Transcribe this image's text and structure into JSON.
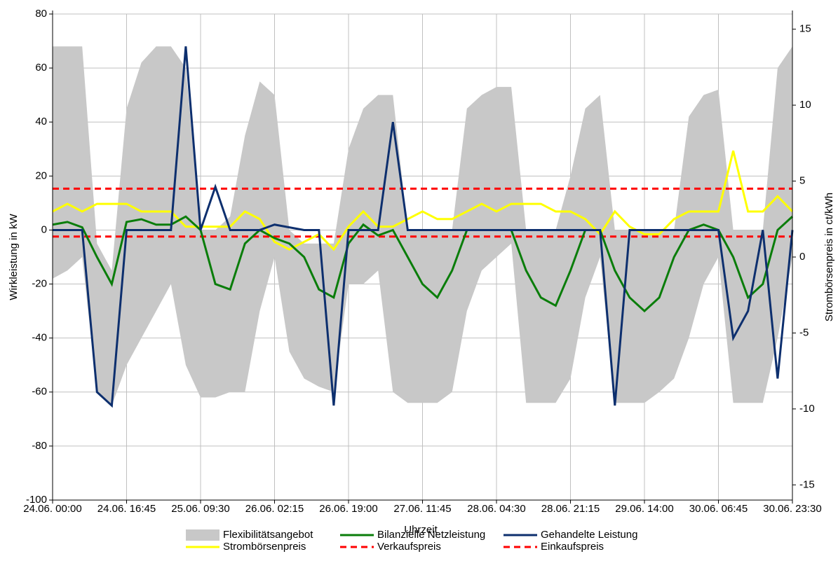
{
  "chart_data": {
    "type": "line",
    "x_label": "Uhrzeit",
    "y_label": "Wirkleistung in kW",
    "y2_label": "Strombörsenpreis in ct/kWh",
    "categories": [
      "24.06. 00:00",
      null,
      null,
      null,
      null,
      "24.06. 16:45",
      null,
      null,
      null,
      null,
      "25.06. 09:30",
      null,
      null,
      null,
      null,
      "26.06. 02:15",
      null,
      null,
      null,
      null,
      "26.06. 19:00",
      null,
      null,
      null,
      null,
      "27.06. 11:45",
      null,
      null,
      null,
      null,
      "28.06. 04:30",
      null,
      null,
      null,
      null,
      "28.06. 21:15",
      null,
      null,
      null,
      null,
      "29.06. 14:00",
      null,
      null,
      null,
      null,
      "30.06. 06:45",
      null,
      null,
      null,
      null,
      "30.06. 23:30"
    ],
    "ylim": [
      -100,
      80
    ],
    "yticks": [
      -100,
      -80,
      -60,
      -40,
      -20,
      0,
      20,
      40,
      60,
      80
    ],
    "y2lim": [
      -16,
      16
    ],
    "y2ticks": [
      -15,
      -10,
      -5,
      0,
      5,
      10,
      15
    ],
    "grid": true,
    "series": [
      {
        "name": "Flexibilitätsangebot",
        "kind": "band",
        "color": "#c8c8c8",
        "values": [
          68,
          68,
          68,
          -5,
          -15,
          45,
          62,
          68,
          68,
          60,
          0,
          0,
          5,
          35,
          55,
          50,
          0,
          -5,
          -5,
          -5,
          30,
          45,
          50,
          50,
          0,
          0,
          0,
          0,
          45,
          50,
          53,
          53,
          0,
          0,
          0,
          20,
          45,
          50,
          0,
          0,
          0,
          0,
          0,
          42,
          50,
          52,
          0,
          0,
          0,
          60,
          68
        ],
        "lower": [
          -18,
          -15,
          -10,
          -60,
          -65,
          -50,
          -40,
          -30,
          -20,
          -50,
          -62,
          -62,
          -60,
          -60,
          -30,
          -10,
          -45,
          -55,
          -58,
          -60,
          -20,
          -20,
          -15,
          -60,
          -64,
          -64,
          -64,
          -60,
          -30,
          -15,
          -10,
          -5,
          -64,
          -64,
          -64,
          -55,
          -25,
          -10,
          -64,
          -64,
          -64,
          -60,
          -55,
          -40,
          -20,
          -10,
          -64,
          -64,
          -64,
          -40,
          -10
        ]
      },
      {
        "name": "Bilanzielle Netzleistung",
        "color": "#0a7d0a",
        "values": [
          2,
          3,
          1,
          -10,
          -20,
          3,
          4,
          2,
          2,
          5,
          0,
          -20,
          -22,
          -5,
          0,
          -3,
          -5,
          -10,
          -22,
          -25,
          -5,
          2,
          -2,
          0,
          -10,
          -20,
          -25,
          -15,
          0,
          0,
          0,
          0,
          -15,
          -25,
          -28,
          -15,
          0,
          0,
          -15,
          -25,
          -30,
          -25,
          -10,
          0,
          2,
          0,
          -10,
          -25,
          -20,
          0,
          5
        ]
      },
      {
        "name": "Gehandelte Leistung",
        "color": "#0d2f6e",
        "values": [
          0,
          0,
          0,
          -60,
          -65,
          0,
          0,
          0,
          0,
          68,
          0,
          16,
          0,
          0,
          0,
          2,
          1,
          0,
          0,
          -65,
          0,
          0,
          0,
          40,
          0,
          0,
          0,
          0,
          0,
          0,
          0,
          0,
          0,
          0,
          0,
          0,
          0,
          0,
          -65,
          0,
          0,
          0,
          0,
          0,
          0,
          0,
          -40,
          -30,
          0,
          -55,
          0
        ]
      },
      {
        "name": "Strombörsenpreis",
        "color": "#ffff00",
        "axis": "y2",
        "values": [
          3,
          3.5,
          3,
          3.5,
          3.5,
          3.5,
          3,
          3,
          3,
          2,
          2,
          2,
          2,
          3,
          2.5,
          1,
          0.5,
          1,
          1.5,
          0.5,
          2,
          3,
          2,
          2,
          2.5,
          3,
          2.5,
          2.5,
          3,
          3.5,
          3,
          3.5,
          3.5,
          3.5,
          3,
          3,
          2.5,
          1.5,
          3,
          2,
          1.5,
          1.5,
          2.5,
          3,
          3,
          3,
          7,
          3,
          3,
          4,
          3
        ]
      },
      {
        "name": "Verkaufspreis",
        "kind": "hline",
        "color": "#ff0000",
        "axis": "y2",
        "value": 4.5
      },
      {
        "name": "Einkaufspreis",
        "kind": "hline",
        "color": "#ff0000",
        "axis": "y2",
        "value": 1.35
      }
    ]
  }
}
